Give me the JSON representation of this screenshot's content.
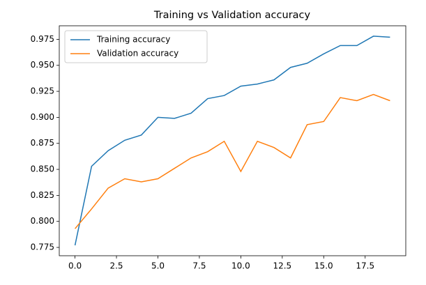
{
  "chart_data": {
    "type": "line",
    "title": "Training vs Validation accuracy",
    "x": [
      0,
      1,
      2,
      3,
      4,
      5,
      6,
      7,
      8,
      9,
      10,
      11,
      12,
      13,
      14,
      15,
      16,
      17,
      18,
      19
    ],
    "series": [
      {
        "name": "Training accuracy",
        "color": "#1f77b4",
        "values": [
          0.777,
          0.853,
          0.868,
          0.878,
          0.883,
          0.9,
          0.899,
          0.904,
          0.918,
          0.921,
          0.93,
          0.932,
          0.936,
          0.948,
          0.952,
          0.961,
          0.969,
          0.969,
          0.978,
          0.977
        ]
      },
      {
        "name": "Validation accuracy",
        "color": "#ff7f0e",
        "values": [
          0.793,
          0.812,
          0.832,
          0.841,
          0.838,
          0.841,
          0.851,
          0.861,
          0.867,
          0.877,
          0.848,
          0.877,
          0.871,
          0.861,
          0.893,
          0.896,
          0.919,
          0.916,
          0.922,
          0.916
        ]
      }
    ],
    "xlim": [
      -0.95,
      19.95
    ],
    "xticks": [
      {
        "value": 0,
        "label": "0.0"
      },
      2.5,
      {
        "value": 5,
        "label": "5.0"
      },
      7.5,
      {
        "value": 10,
        "label": "10.0"
      },
      12.5,
      {
        "value": 15,
        "label": "15.0"
      },
      17.5
    ],
    "ylim": [
      0.767,
      0.988
    ],
    "yticks": [
      0.775,
      {
        "value": 0.8,
        "label": "0.800"
      },
      0.825,
      {
        "value": 0.85,
        "label": "0.850"
      },
      0.875,
      {
        "value": 0.9,
        "label": "0.900"
      },
      0.925,
      {
        "value": 0.95,
        "label": "0.950"
      },
      0.975
    ],
    "grid": false,
    "legend": "upper-left"
  }
}
